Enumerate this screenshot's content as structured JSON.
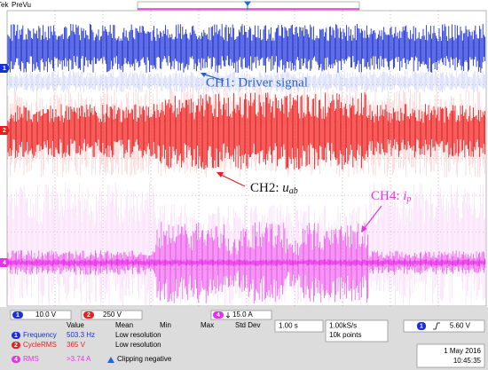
{
  "header": {
    "brand": "Tek",
    "mode": "PreVu"
  },
  "markers": [
    "1",
    "2",
    "4"
  ],
  "annotations": {
    "ch1": "CH1: Driver signal",
    "ch2": {
      "prefix": "CH2: ",
      "var": "u",
      "sub": "ab"
    },
    "ch4": {
      "prefix": "CH4: ",
      "var": "i",
      "sub": "p"
    }
  },
  "channels": [
    {
      "id": "1",
      "scale": "10.0 V"
    },
    {
      "id": "2",
      "scale": "250 V"
    },
    {
      "id": "4",
      "scale": "15.0 A"
    }
  ],
  "measurements": {
    "columns": [
      "Value",
      "Mean",
      "Min",
      "Max",
      "Std Dev"
    ],
    "rows": [
      {
        "ch": "1",
        "name": "Frequency",
        "value": "503.3 Hz",
        "note": "Low resolution"
      },
      {
        "ch": "2",
        "name": "CycleRMS",
        "value": "365 V",
        "note": "Low resolution"
      },
      {
        "ch": "4",
        "name": "RMS",
        "value": ">3.74 A",
        "note": "Clipping negative"
      }
    ]
  },
  "timebase": "1.00 s",
  "sample_rate": "1.00kS/s",
  "record": "10k points",
  "trigger": {
    "ch": "1",
    "level": "5.60 V"
  },
  "date": "1 May 2016",
  "time": "10:45:35"
}
